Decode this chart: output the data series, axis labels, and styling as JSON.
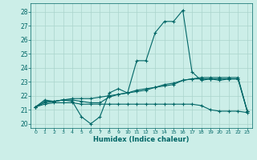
{
  "xlabel": "Humidex (Indice chaleur)",
  "bg_color": "#cceee8",
  "grid_color": "#aad4cc",
  "line_color": "#006666",
  "xlim": [
    -0.5,
    23.5
  ],
  "ylim": [
    19.7,
    28.6
  ],
  "xticks": [
    0,
    1,
    2,
    3,
    4,
    5,
    6,
    7,
    8,
    9,
    10,
    11,
    12,
    13,
    14,
    15,
    16,
    17,
    18,
    19,
    20,
    21,
    22,
    23
  ],
  "yticks": [
    20,
    21,
    22,
    23,
    24,
    25,
    26,
    27,
    28
  ],
  "series": [
    {
      "x": [
        0,
        1,
        2,
        3,
        4,
        5,
        6,
        7,
        8,
        9,
        10,
        11,
        12,
        13,
        14,
        15,
        16,
        17,
        18,
        19,
        20,
        21,
        22,
        23
      ],
      "y": [
        21.2,
        21.7,
        21.6,
        21.7,
        21.6,
        20.5,
        20.0,
        20.5,
        22.2,
        22.5,
        22.2,
        24.5,
        24.5,
        26.5,
        27.3,
        27.3,
        28.1,
        23.7,
        23.1,
        23.2,
        23.1,
        23.2,
        23.2,
        20.9
      ]
    },
    {
      "x": [
        0,
        1,
        2,
        3,
        4,
        5,
        6,
        7,
        8,
        9,
        10,
        11,
        12,
        13,
        14,
        15,
        16,
        17,
        18,
        19,
        20,
        21,
        22,
        23
      ],
      "y": [
        21.2,
        21.5,
        21.6,
        21.7,
        21.8,
        21.8,
        21.8,
        21.9,
        22.0,
        22.1,
        22.2,
        22.3,
        22.4,
        22.6,
        22.7,
        22.8,
        23.1,
        23.2,
        23.3,
        23.3,
        23.3,
        23.3,
        23.3,
        20.9
      ]
    },
    {
      "x": [
        0,
        1,
        2,
        3,
        4,
        5,
        6,
        7,
        8,
        9,
        10,
        11,
        12,
        13,
        14,
        15,
        16,
        17,
        18,
        19,
        20,
        21,
        22,
        23
      ],
      "y": [
        21.2,
        21.4,
        21.5,
        21.5,
        21.5,
        21.4,
        21.4,
        21.4,
        21.4,
        21.4,
        21.4,
        21.4,
        21.4,
        21.4,
        21.4,
        21.4,
        21.4,
        21.4,
        21.3,
        21.0,
        20.9,
        20.9,
        20.9,
        20.8
      ]
    },
    {
      "x": [
        0,
        1,
        2,
        3,
        4,
        5,
        6,
        7,
        8,
        9,
        10,
        11,
        12,
        13,
        14,
        15,
        16,
        17,
        18,
        19,
        20,
        21,
        22,
        23
      ],
      "y": [
        21.2,
        21.6,
        21.6,
        21.7,
        21.7,
        21.6,
        21.5,
        21.5,
        21.9,
        22.1,
        22.2,
        22.4,
        22.5,
        22.6,
        22.8,
        22.9,
        23.1,
        23.2,
        23.2,
        23.2,
        23.2,
        23.2,
        23.2,
        20.9
      ]
    }
  ]
}
